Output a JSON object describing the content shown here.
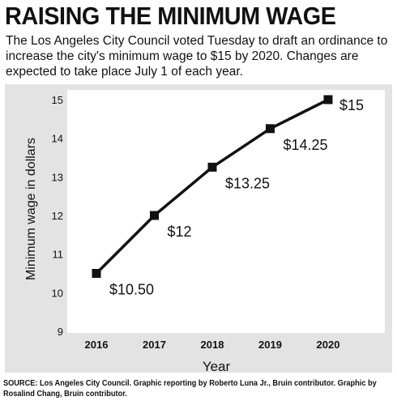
{
  "header": {
    "title": "RAISING THE MINIMUM WAGE",
    "subtitle": "The Los Angeles City Council voted Tuesday to draft an ordinance to increase the city's minimum wage to $15 by 2020. Changes are expected to take place July 1 of each year."
  },
  "footer": {
    "source": "SOURCE: Los Angeles City Council. Graphic reporting by Roberto Luna Jr., Bruin contributor. Graphic by Rosalind Chang, Bruin contributor."
  },
  "colors": {
    "panel_background": "#e3e3e3",
    "plot_background": "#ffffff",
    "line": "#111111"
  },
  "chart_data": {
    "type": "line",
    "title": "",
    "xlabel": "Year",
    "ylabel": "Minimum wage in dollars",
    "categories": [
      "2016",
      "2017",
      "2018",
      "2019",
      "2020"
    ],
    "series": [
      {
        "values": [
          10.5,
          12,
          13.25,
          14.25,
          15
        ]
      }
    ],
    "data_labels": [
      "$10.50",
      "$12",
      "$13.25",
      "$14.25",
      "$15"
    ],
    "yticks": [
      9,
      10,
      11,
      12,
      13,
      14,
      15
    ],
    "ylim": [
      9,
      15
    ],
    "grid": false,
    "legend": "none",
    "marker": "square"
  }
}
